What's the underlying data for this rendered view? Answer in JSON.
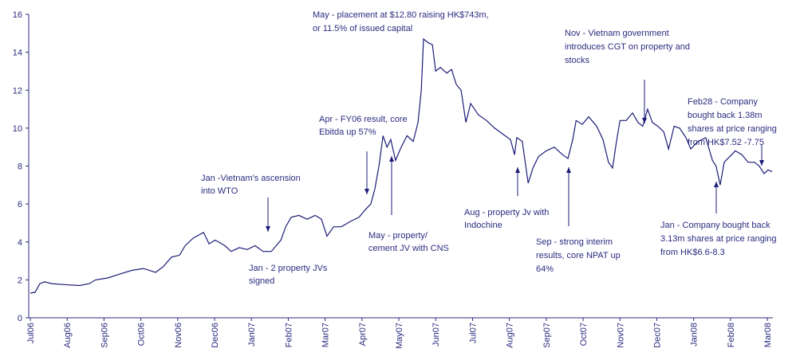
{
  "chart_data": {
    "type": "line",
    "color": "#1c1c78",
    "xlim": [
      0,
      20.15
    ],
    "ylim": [
      0,
      16
    ],
    "yticks": [
      0,
      2,
      4,
      6,
      8,
      10,
      12,
      14,
      16
    ],
    "xticks": [
      {
        "value": 0,
        "label": "Jul06"
      },
      {
        "value": 1,
        "label": "Aug06"
      },
      {
        "value": 2,
        "label": "Sep06"
      },
      {
        "value": 3,
        "label": "Oct06"
      },
      {
        "value": 4,
        "label": "Nov06"
      },
      {
        "value": 5,
        "label": "Dec06"
      },
      {
        "value": 6,
        "label": "Jan07"
      },
      {
        "value": 7,
        "label": "Feb07"
      },
      {
        "value": 8,
        "label": "Mar07"
      },
      {
        "value": 9,
        "label": "Apr07"
      },
      {
        "value": 10,
        "label": "May07"
      },
      {
        "value": 11,
        "label": "Jun07"
      },
      {
        "value": 12,
        "label": "Jul07"
      },
      {
        "value": 13,
        "label": "Aug07"
      },
      {
        "value": 14,
        "label": "Sep07"
      },
      {
        "value": 15,
        "label": "Oct07"
      },
      {
        "value": 16,
        "label": "Nov07"
      },
      {
        "value": 17,
        "label": "Dec07"
      },
      {
        "value": 18,
        "label": "Jan08"
      },
      {
        "value": 19,
        "label": "Feb08"
      },
      {
        "value": 20,
        "label": "Mar08"
      }
    ],
    "x": [
      0,
      0.13,
      0.26,
      0.39,
      0.58,
      0.91,
      1.34,
      1.6,
      1.77,
      2.1,
      2.42,
      2.75,
      3.07,
      3.4,
      3.61,
      3.83,
      4.05,
      4.2,
      4.42,
      4.7,
      4.85,
      5.02,
      5.28,
      5.45,
      5.67,
      5.89,
      6.1,
      6.32,
      6.54,
      6.67,
      6.8,
      6.93,
      7.08,
      7.29,
      7.51,
      7.73,
      7.9,
      8.05,
      8.23,
      8.44,
      8.7,
      8.92,
      9.09,
      9.24,
      9.35,
      9.46,
      9.57,
      9.68,
      9.78,
      9.91,
      10.04,
      10.22,
      10.39,
      10.52,
      10.61,
      10.67,
      10.8,
      10.91,
      11.0,
      11.13,
      11.3,
      11.43,
      11.56,
      11.69,
      11.82,
      11.95,
      12.16,
      12.38,
      12.6,
      12.81,
      13.03,
      13.14,
      13.2,
      13.35,
      13.51,
      13.64,
      13.79,
      14.0,
      14.22,
      14.44,
      14.59,
      14.72,
      14.81,
      14.98,
      15.15,
      15.37,
      15.54,
      15.69,
      15.8,
      15.89,
      16.0,
      16.17,
      16.34,
      16.49,
      16.62,
      16.75,
      16.88,
      17.03,
      17.19,
      17.32,
      17.47,
      17.62,
      17.79,
      17.92,
      18.12,
      18.33,
      18.51,
      18.61,
      18.72,
      18.83,
      18.98,
      19.13,
      19.31,
      19.48,
      19.65,
      19.78,
      19.91,
      20.02,
      20.13
    ],
    "values": [
      1.3,
      1.35,
      1.8,
      1.9,
      1.8,
      1.75,
      1.7,
      1.8,
      2.0,
      2.1,
      2.3,
      2.5,
      2.6,
      2.4,
      2.7,
      3.2,
      3.3,
      3.8,
      4.2,
      4.5,
      3.9,
      4.1,
      3.8,
      3.5,
      3.7,
      3.6,
      3.8,
      3.5,
      3.5,
      3.8,
      4.1,
      4.8,
      5.3,
      5.4,
      5.2,
      5.4,
      5.2,
      4.3,
      4.8,
      4.8,
      5.1,
      5.3,
      5.7,
      6.0,
      6.8,
      8.0,
      9.6,
      9.0,
      9.4,
      8.3,
      8.9,
      9.6,
      9.3,
      10.3,
      12.0,
      14.7,
      14.5,
      14.4,
      13.0,
      13.2,
      12.9,
      13.1,
      12.3,
      12.0,
      10.3,
      11.3,
      10.7,
      10.4,
      10.0,
      9.7,
      9.4,
      8.6,
      9.5,
      9.3,
      7.1,
      7.9,
      8.5,
      8.8,
      9.0,
      8.6,
      8.4,
      9.4,
      10.4,
      10.2,
      10.6,
      10.1,
      9.4,
      8.2,
      7.9,
      9.1,
      10.4,
      10.4,
      10.8,
      10.3,
      10.1,
      11.0,
      10.3,
      10.1,
      9.8,
      8.9,
      10.1,
      10.0,
      9.5,
      8.9,
      9.3,
      9.5,
      8.3,
      8.0,
      7.0,
      8.2,
      8.5,
      8.8,
      8.6,
      8.2,
      8.2,
      8.0,
      7.6,
      7.8,
      7.7
    ],
    "annotations": [
      {
        "lines": [
          "May - placement at $12.80 raising HK$743m,",
          "or 11.5% of issued capital"
        ]
      },
      {
        "lines": [
          "Nov - Vietnam government",
          "introduces CGT on property and",
          "stocks"
        ]
      },
      {
        "lines": [
          "Feb28 - Company",
          "bought back 1.38m",
          "shares at price ranging",
          "from HK$7.52 -7.75"
        ]
      },
      {
        "lines": [
          "Apr - FY06 result, core",
          "Ebitda up 57%"
        ]
      },
      {
        "lines": [
          "Jan -Vietnam's ascension",
          "into WTO"
        ]
      },
      {
        "lines": [
          "Aug - property Jv with",
          "Indochine"
        ]
      },
      {
        "lines": [
          "May - property/",
          "cement JV with CNS"
        ]
      },
      {
        "lines": [
          "Jan - 2 property JVs",
          "signed"
        ]
      },
      {
        "lines": [
          "Sep - strong interim",
          "results, core NPAT up",
          "64%"
        ]
      },
      {
        "lines": [
          "Jan - Company bought back",
          "3.13m shares at price ranging",
          "from HK$6.6-8.3"
        ]
      }
    ]
  }
}
